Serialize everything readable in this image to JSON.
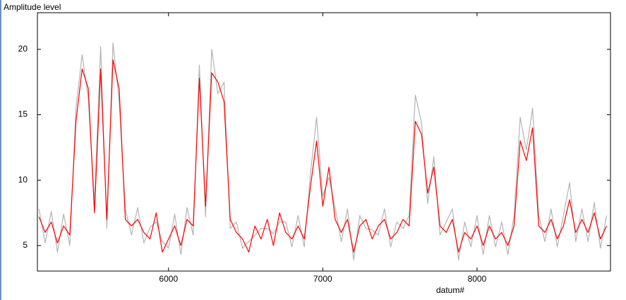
{
  "chart_data": {
    "type": "line",
    "title": "Amplitude level",
    "x_label": "datum#",
    "xlim": [
      5150,
      8865
    ],
    "ylim": [
      3.05,
      22.8
    ],
    "xticks": [
      6000,
      7000,
      8000
    ],
    "yticks": [
      5,
      10,
      15,
      20
    ],
    "grid": false,
    "x": [
      5160,
      5200,
      5240,
      5280,
      5320,
      5360,
      5400,
      5440,
      5480,
      5520,
      5560,
      5600,
      5640,
      5680,
      5720,
      5760,
      5800,
      5840,
      5880,
      5920,
      5960,
      6000,
      6040,
      6080,
      6120,
      6160,
      6200,
      6240,
      6280,
      6320,
      6360,
      6400,
      6440,
      6480,
      6520,
      6560,
      6600,
      6640,
      6680,
      6720,
      6760,
      6800,
      6840,
      6880,
      6920,
      6960,
      7000,
      7040,
      7080,
      7120,
      7160,
      7200,
      7240,
      7280,
      7320,
      7360,
      7400,
      7440,
      7480,
      7520,
      7560,
      7600,
      7640,
      7680,
      7720,
      7760,
      7800,
      7840,
      7880,
      7920,
      7960,
      8000,
      8040,
      8080,
      8120,
      8160,
      8200,
      8240,
      8280,
      8320,
      8360,
      8400,
      8440,
      8480,
      8520,
      8560,
      8600,
      8640,
      8680,
      8720,
      8760,
      8800,
      8840
    ],
    "series": [
      {
        "color": "#b4b4b4",
        "values": [
          7.8,
          5.2,
          7.6,
          4.5,
          7.4,
          5.0,
          15.5,
          19.6,
          16.2,
          8.3,
          20.2,
          6.3,
          20.5,
          16.0,
          7.8,
          5.8,
          7.9,
          5.2,
          6.4,
          6.8,
          5.3,
          4.8,
          7.4,
          4.3,
          7.9,
          5.8,
          18.8,
          7.2,
          20.0,
          16.6,
          17.5,
          6.3,
          6.8,
          4.8,
          5.3,
          5.8,
          6.3,
          6.3,
          5.9,
          6.8,
          6.8,
          4.9,
          7.3,
          4.9,
          10.5,
          14.8,
          8.8,
          10.2,
          7.9,
          5.3,
          7.8,
          3.9,
          7.3,
          6.3,
          6.2,
          5.8,
          7.8,
          4.9,
          6.8,
          6.3,
          7.3,
          16.5,
          14.4,
          8.2,
          11.8,
          5.8,
          6.8,
          7.8,
          3.9,
          6.8,
          4.9,
          7.3,
          4.3,
          7.3,
          4.9,
          6.8,
          4.3,
          7.3,
          14.8,
          12.3,
          15.5,
          7.3,
          5.3,
          7.8,
          4.9,
          7.3,
          9.8,
          5.3,
          7.8,
          5.3,
          8.3,
          4.8,
          7.3
        ]
      },
      {
        "color": "#ff0000",
        "values": [
          7.2,
          6.0,
          6.8,
          5.2,
          6.5,
          5.8,
          14.5,
          18.5,
          17.0,
          7.5,
          18.5,
          7.0,
          19.2,
          17.0,
          7.0,
          6.5,
          7.0,
          6.0,
          5.5,
          7.5,
          4.5,
          5.5,
          6.5,
          5.0,
          7.0,
          6.5,
          17.8,
          8.0,
          18.2,
          17.5,
          16.0,
          7.0,
          6.0,
          5.5,
          4.5,
          6.5,
          5.5,
          7.0,
          5.0,
          7.5,
          6.0,
          5.5,
          6.5,
          5.5,
          9.5,
          13.0,
          8.0,
          11.0,
          7.0,
          6.0,
          7.0,
          4.5,
          6.5,
          7.0,
          5.5,
          6.5,
          7.0,
          5.5,
          6.0,
          7.0,
          6.5,
          14.5,
          13.5,
          9.0,
          11.0,
          6.5,
          6.0,
          7.0,
          4.5,
          6.0,
          5.5,
          6.5,
          5.0,
          6.5,
          5.5,
          6.0,
          5.0,
          6.5,
          13.0,
          11.5,
          14.0,
          6.5,
          6.0,
          7.0,
          5.5,
          6.5,
          8.5,
          6.0,
          7.0,
          6.0,
          7.5,
          5.5,
          6.5
        ]
      }
    ]
  }
}
